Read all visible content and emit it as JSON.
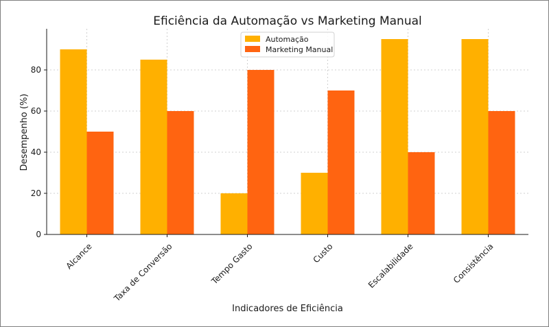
{
  "chart_data": {
    "type": "bar",
    "title": "Eficiência da Automação vs Marketing Manual",
    "xlabel": "Indicadores de Eficiência",
    "ylabel": "Desempenho (%)",
    "categories": [
      "Alcance",
      "Taxa de Conversão",
      "Tempo Gasto",
      "Custo",
      "Escalabilidade",
      "Consistência"
    ],
    "series": [
      {
        "name": "Automação",
        "values": [
          90,
          85,
          20,
          30,
          95,
          95
        ],
        "color": "#FFB000"
      },
      {
        "name": "Marketing Manual",
        "values": [
          50,
          60,
          80,
          70,
          40,
          60
        ],
        "color": "#FF6411"
      }
    ],
    "ylim": [
      0,
      100
    ],
    "yticks": [
      0,
      20,
      40,
      60,
      80
    ],
    "grid": true,
    "legend_position": "top-center"
  }
}
